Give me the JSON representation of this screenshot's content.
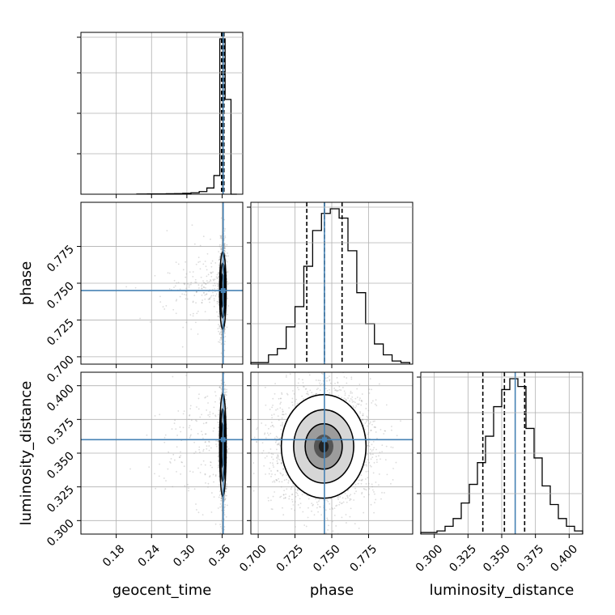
{
  "chart_data": {
    "type": "corner",
    "parameters": [
      "geocent_time",
      "phase",
      "luminosity_distance"
    ],
    "axis_labels": {
      "geocent_time": "geocent_time",
      "phase": "phase",
      "luminosity_distance": "luminosity_distance"
    },
    "ranges": {
      "geocent_time": [
        0.12,
        0.395
      ],
      "phase": [
        0.695,
        0.805
      ],
      "luminosity_distance": [
        0.29,
        0.41
      ]
    },
    "ticks": {
      "geocent_time": [
        "0.18",
        "0.24",
        "0.30",
        "0.36"
      ],
      "phase": [
        "0.700",
        "0.725",
        "0.750",
        "0.775"
      ],
      "luminosity_distance": [
        "0.300",
        "0.325",
        "0.350",
        "0.375",
        "0.400"
      ]
    },
    "truths": {
      "geocent_time": 0.3617,
      "phase": 0.745,
      "luminosity_distance": 0.36
    },
    "quantiles": {
      "geocent_time": [
        0.359,
        0.361,
        0.363
      ],
      "phase": [
        0.733,
        0.745,
        0.757
      ],
      "luminosity_distance": [
        0.336,
        0.352,
        0.367
      ]
    },
    "histograms": {
      "geocent_time": {
        "edges": [
          0.215,
          0.233,
          0.251,
          0.265,
          0.279,
          0.293,
          0.307,
          0.321,
          0.334,
          0.346,
          0.356,
          0.365,
          0.375,
          0.385
        ],
        "counts": [
          1,
          2,
          2,
          3,
          4,
          6,
          9,
          17,
          40,
          120,
          1000,
          610,
          0
        ]
      },
      "phase": {
        "edges": [
          0.695,
          0.701,
          0.707,
          0.713,
          0.719,
          0.725,
          0.731,
          0.737,
          0.743,
          0.749,
          0.755,
          0.761,
          0.767,
          0.773,
          0.779,
          0.785,
          0.791,
          0.797,
          0.803
        ],
        "counts": [
          0.01,
          0.01,
          0.06,
          0.1,
          0.24,
          0.37,
          0.63,
          0.86,
          0.97,
          1.0,
          0.94,
          0.73,
          0.46,
          0.26,
          0.13,
          0.06,
          0.02,
          0.01
        ]
      },
      "luminosity_distance": {
        "edges": [
          0.29,
          0.296,
          0.302,
          0.308,
          0.314,
          0.32,
          0.326,
          0.332,
          0.338,
          0.344,
          0.35,
          0.356,
          0.362,
          0.368,
          0.374,
          0.38,
          0.386,
          0.392,
          0.398,
          0.404,
          0.41
        ],
        "counts": [
          0.01,
          0.01,
          0.02,
          0.05,
          0.1,
          0.2,
          0.32,
          0.46,
          0.63,
          0.82,
          0.93,
          1.0,
          0.95,
          0.68,
          0.49,
          0.31,
          0.19,
          0.1,
          0.05,
          0.02
        ]
      }
    },
    "contour_centers": {
      "phase_vs_geocent_time": [
        0.3612,
        0.745
      ],
      "luminosity_distance_vs_geocent_time": [
        0.3612,
        0.356
      ],
      "luminosity_distance_vs_phase": [
        0.7445,
        0.355
      ]
    },
    "colors": {
      "truth": "#4682b4",
      "histogram": "#000000",
      "grid": "#b0b0b0",
      "scatter": "#9a9a9a"
    },
    "grid": true
  }
}
